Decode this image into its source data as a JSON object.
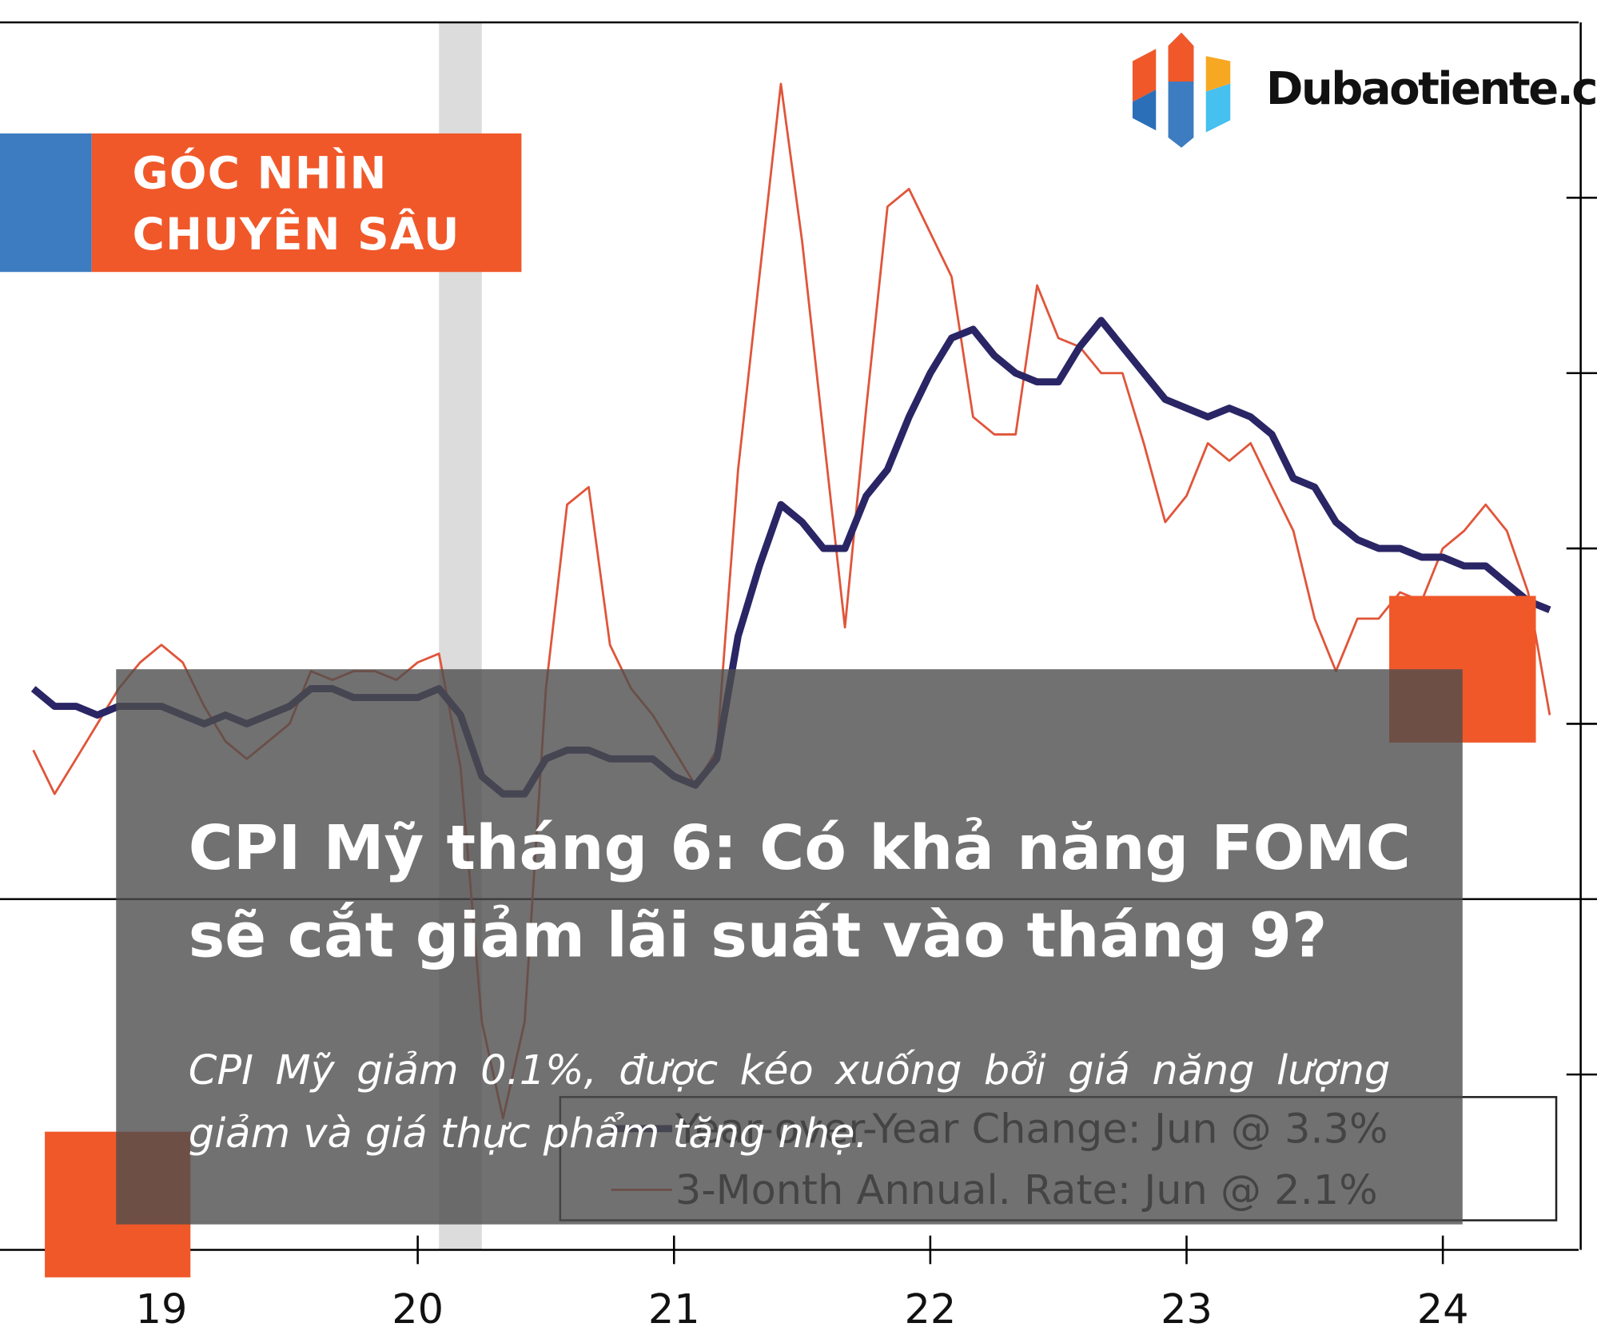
{
  "chart_data": {
    "type": "line",
    "x": [
      18.5,
      18.583,
      18.667,
      18.75,
      18.833,
      18.917,
      19,
      19.083,
      19.167,
      19.25,
      19.333,
      19.417,
      19.5,
      19.583,
      19.667,
      19.75,
      19.833,
      19.917,
      20,
      20.083,
      20.167,
      20.25,
      20.333,
      20.417,
      20.5,
      20.583,
      20.667,
      20.75,
      20.833,
      20.917,
      21,
      21.083,
      21.167,
      21.25,
      21.333,
      21.417,
      21.5,
      21.583,
      21.667,
      21.75,
      21.833,
      21.917,
      22,
      22.083,
      22.167,
      22.25,
      22.333,
      22.417,
      22.5,
      22.583,
      22.667,
      22.75,
      22.833,
      22.917,
      23,
      23.083,
      23.167,
      23.25,
      23.333,
      23.417,
      23.5,
      23.583,
      23.667,
      23.75,
      23.833,
      23.917,
      24,
      24.083,
      24.167,
      24.25,
      24.333,
      24.417
    ],
    "series": [
      {
        "name": "Year-over-Year Change: Jun @ 3.3%",
        "color": "#2a2565",
        "values": [
          2.4,
          2.2,
          2.2,
          2.1,
          2.2,
          2.2,
          2.2,
          2.1,
          2.0,
          2.1,
          2.0,
          2.1,
          2.2,
          2.4,
          2.4,
          2.3,
          2.3,
          2.3,
          2.3,
          2.4,
          2.1,
          1.4,
          1.2,
          1.2,
          1.6,
          1.7,
          1.7,
          1.6,
          1.6,
          1.6,
          1.4,
          1.3,
          1.6,
          3.0,
          3.8,
          4.5,
          4.3,
          4.0,
          4.0,
          4.6,
          4.9,
          5.5,
          6.0,
          6.4,
          6.5,
          6.2,
          6.0,
          5.9,
          5.9,
          6.3,
          6.6,
          6.3,
          6.0,
          5.7,
          5.6,
          5.5,
          5.6,
          5.5,
          5.3,
          4.8,
          4.7,
          4.3,
          4.1,
          4.0,
          4.0,
          3.9,
          3.9,
          3.8,
          3.8,
          3.6,
          3.4,
          3.3
        ]
      },
      {
        "name": "3-Month Annual. Rate: Jun @ 2.1%",
        "color": "#e0553a",
        "values": [
          1.7,
          1.2,
          1.6,
          2.0,
          2.4,
          2.7,
          2.9,
          2.7,
          2.2,
          1.8,
          1.6,
          1.8,
          2.0,
          2.6,
          2.5,
          2.6,
          2.6,
          2.5,
          2.7,
          2.8,
          1.5,
          -1.4,
          -2.5,
          -1.4,
          2.4,
          4.5,
          4.7,
          2.9,
          2.4,
          2.1,
          1.7,
          1.3,
          1.7,
          4.9,
          7.1,
          9.3,
          7.5,
          5.3,
          3.1,
          5.6,
          7.9,
          8.1,
          7.6,
          7.1,
          5.5,
          5.3,
          5.3,
          7.0,
          6.4,
          6.3,
          6.0,
          6.0,
          5.2,
          4.3,
          4.6,
          5.2,
          5.0,
          5.2,
          4.7,
          4.2,
          3.2,
          2.6,
          3.2,
          3.2,
          3.5,
          3.4,
          4.0,
          4.2,
          4.5,
          4.2,
          3.5,
          2.1
        ]
      }
    ],
    "xlim": [
      18.37,
      24.53
    ],
    "xticks": [
      19,
      20,
      21,
      22,
      23,
      24
    ],
    "ylim": [
      -4,
      10
    ],
    "yticks": [
      -2,
      0,
      2,
      4,
      6,
      8
    ],
    "ytick_labels": false,
    "recession_band": [
      20.083,
      20.25
    ],
    "recession_color": "#dcdcdc"
  },
  "banner": {
    "line1": "GÓC NHÌN",
    "line2": "CHUYÊN SÂU"
  },
  "logo": {
    "text": "Dubaotiente.com"
  },
  "headline": "CPI Mỹ tháng 6: Có khả năng FOMC sẽ cắt giảm lãi suất vào tháng 9?",
  "subtitle": "CPI Mỹ giảm 0.1%, được kéo xuống bởi giá năng lượng giảm và giá thực phẩm tăng nhẹ."
}
